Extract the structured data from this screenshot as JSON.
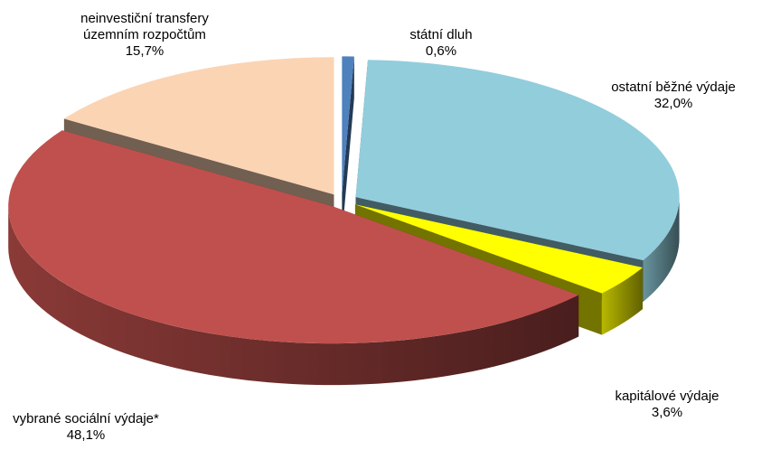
{
  "chart_data": {
    "type": "pie3d",
    "categories": [
      "státní dluh",
      "ostatní běžné výdaje",
      "kapitálové výdaje",
      "vybrané sociální výdaje*",
      "neinvestiční transfery územním rozpočtům"
    ],
    "values": [
      0.6,
      32.0,
      3.6,
      48.1,
      15.7
    ],
    "value_labels": [
      "0,6%",
      "32,0%",
      "3,6%",
      "48,1%",
      "15,7%"
    ],
    "colors": [
      "#4f81bd",
      "#92cddc",
      "#ffff00",
      "#c0504d",
      "#fbd4b4"
    ]
  }
}
